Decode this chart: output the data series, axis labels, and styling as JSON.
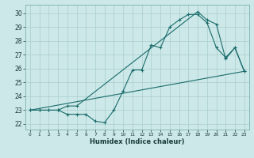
{
  "xlabel": "Humidex (Indice chaleur)",
  "bg_color": "#cce8e8",
  "line_color": "#1a6b6b",
  "grid_color": "#aacece",
  "xlim": [
    -0.5,
    23.5
  ],
  "ylim": [
    21.6,
    30.6
  ],
  "xticks": [
    0,
    1,
    2,
    3,
    4,
    5,
    6,
    7,
    8,
    9,
    10,
    11,
    12,
    13,
    14,
    15,
    16,
    17,
    18,
    19,
    20,
    21,
    22,
    23
  ],
  "yticks": [
    22,
    23,
    24,
    25,
    26,
    27,
    28,
    29,
    30
  ],
  "line1_x": [
    0,
    1,
    2,
    3,
    4,
    5,
    6,
    7,
    8,
    9,
    10,
    11,
    12,
    13,
    14,
    15,
    16,
    17,
    18,
    19,
    20,
    21,
    22,
    23
  ],
  "line1_y": [
    23,
    23,
    23,
    23,
    22.7,
    22.7,
    22.7,
    22.2,
    22.1,
    23,
    24.4,
    25.9,
    25.9,
    27.7,
    27.5,
    29.0,
    29.5,
    29.9,
    29.9,
    29.3,
    27.5,
    26.8,
    27.5,
    25.8
  ],
  "line2_x": [
    0,
    1,
    2,
    3,
    4,
    5,
    18,
    19,
    20,
    21,
    22,
    23
  ],
  "line2_y": [
    23,
    23,
    23,
    23,
    23.3,
    23.3,
    30.1,
    29.5,
    29.2,
    26.7,
    27.5,
    25.8
  ],
  "line3_x": [
    0,
    23
  ],
  "line3_y": [
    23,
    25.8
  ]
}
